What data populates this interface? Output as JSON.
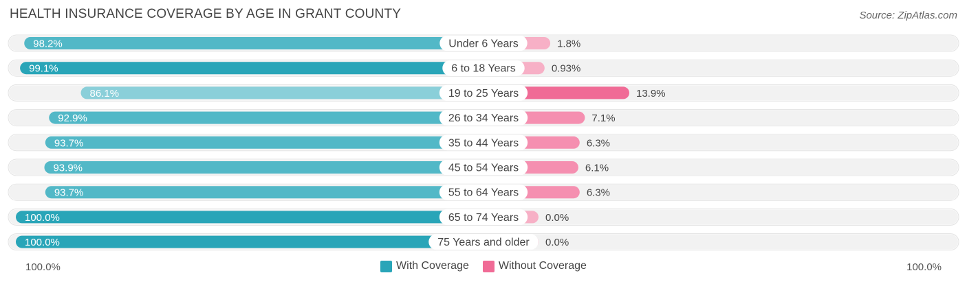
{
  "title": "HEALTH INSURANCE COVERAGE BY AGE IN GRANT COUNTY",
  "source": "Source: ZipAtlas.com",
  "colors": {
    "with_coverage_dark": "#29a5b8",
    "with_coverage_light": "#8acfd9",
    "without_coverage_dark": "#f06b96",
    "without_coverage_light": "#f7b0c6",
    "track": "#f2f2f2"
  },
  "chart_data": {
    "type": "bar",
    "orientation": "horizontal-diverging",
    "title": "HEALTH INSURANCE COVERAGE BY AGE IN GRANT COUNTY",
    "categories": [
      "Under 6 Years",
      "6 to 18 Years",
      "19 to 25 Years",
      "26 to 34 Years",
      "35 to 44 Years",
      "45 to 54 Years",
      "55 to 64 Years",
      "65 to 74 Years",
      "75 Years and older"
    ],
    "series": [
      {
        "name": "With Coverage",
        "values": [
          98.2,
          99.1,
          86.1,
          92.9,
          93.7,
          93.9,
          93.7,
          100.0,
          100.0
        ],
        "labels": [
          "98.2%",
          "99.1%",
          "86.1%",
          "92.9%",
          "93.7%",
          "93.9%",
          "93.7%",
          "100.0%",
          "100.0%"
        ]
      },
      {
        "name": "Without Coverage",
        "values": [
          1.8,
          0.93,
          13.9,
          7.1,
          6.3,
          6.1,
          6.3,
          0.0,
          0.0
        ],
        "labels": [
          "1.8%",
          "0.93%",
          "13.9%",
          "7.1%",
          "6.3%",
          "6.1%",
          "6.3%",
          "0.0%",
          "0.0%"
        ]
      }
    ],
    "axis_left_label": "100.0%",
    "axis_right_label": "100.0%",
    "legend_placement": "bottom-center"
  }
}
